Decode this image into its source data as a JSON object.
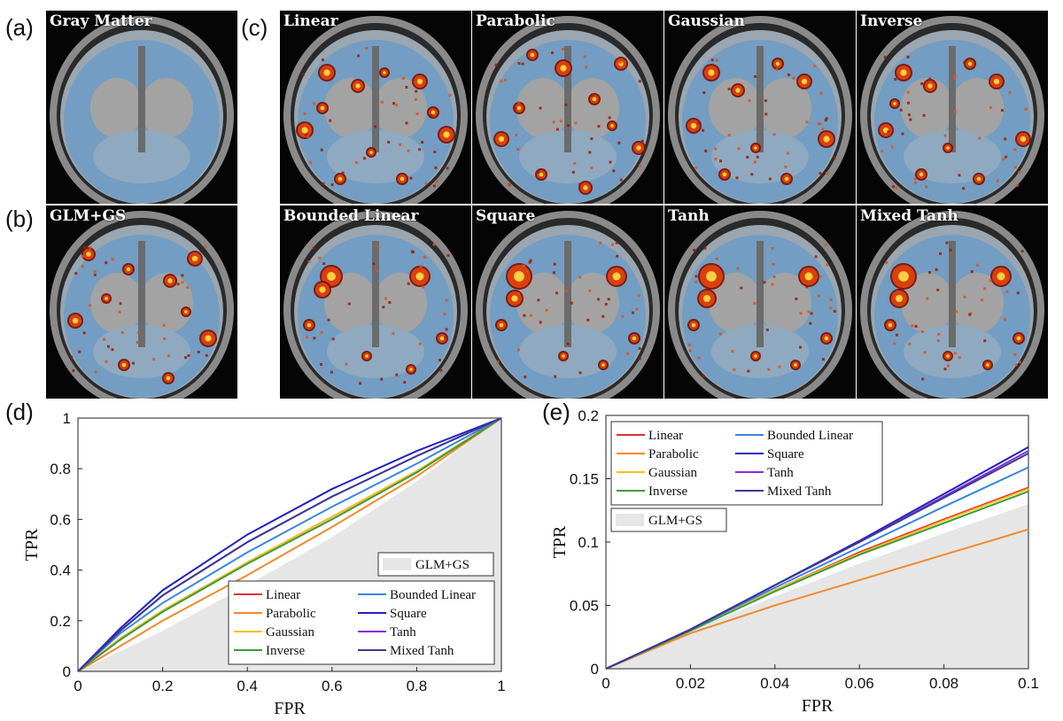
{
  "panels": {
    "a": {
      "label": "(a)",
      "title": "Gray Matter"
    },
    "b": {
      "label": "(b)",
      "title": "GLM+GS"
    },
    "c": {
      "label": "(c)",
      "titles": [
        "Linear",
        "Parabolic",
        "Gaussian",
        "Inverse",
        "Bounded Linear",
        "Square",
        "Tanh",
        "Mixed Tanh"
      ]
    },
    "d": {
      "label": "(d)"
    },
    "e": {
      "label": "(e)"
    }
  },
  "chart_data": [
    {
      "type": "line",
      "panel": "d",
      "xlabel": "FPR",
      "ylabel": "TPR",
      "xlim": [
        0,
        1
      ],
      "ylim": [
        0,
        1
      ],
      "xticks": [
        "0",
        "0.2",
        "0.4",
        "0.6",
        "0.8",
        "1"
      ],
      "yticks": [
        "0",
        "0.2",
        "0.4",
        "0.6",
        "0.8",
        "1"
      ],
      "legend_position": "bottom-right",
      "area": {
        "name": "GLM+GS",
        "color": "#e6e6e6",
        "x": [
          0,
          0.2,
          0.4,
          0.6,
          0.8,
          1
        ],
        "y": [
          0,
          0.16,
          0.34,
          0.53,
          0.75,
          1
        ]
      },
      "series": [
        {
          "name": "Linear",
          "color": "#e03030",
          "x": [
            0,
            0.1,
            0.2,
            0.4,
            0.6,
            0.8,
            1
          ],
          "y": [
            0,
            0.13,
            0.24,
            0.43,
            0.61,
            0.79,
            1
          ]
        },
        {
          "name": "Parabolic",
          "color": "#f08a2c",
          "x": [
            0,
            0.1,
            0.2,
            0.4,
            0.6,
            0.8,
            1
          ],
          "y": [
            0,
            0.1,
            0.2,
            0.38,
            0.57,
            0.77,
            1
          ]
        },
        {
          "name": "Gaussian",
          "color": "#f2c21a",
          "x": [
            0,
            0.1,
            0.2,
            0.4,
            0.6,
            0.8,
            1
          ],
          "y": [
            0,
            0.13,
            0.24,
            0.43,
            0.61,
            0.79,
            1
          ]
        },
        {
          "name": "Inverse",
          "color": "#3f9a3f",
          "x": [
            0,
            0.1,
            0.2,
            0.4,
            0.6,
            0.8,
            1
          ],
          "y": [
            0,
            0.125,
            0.235,
            0.425,
            0.6,
            0.785,
            1
          ]
        },
        {
          "name": "Bounded Linear",
          "color": "#3a86e0",
          "x": [
            0,
            0.1,
            0.2,
            0.4,
            0.6,
            0.8,
            1
          ],
          "y": [
            0,
            0.15,
            0.27,
            0.47,
            0.65,
            0.82,
            1
          ]
        },
        {
          "name": "Square",
          "color": "#2222c0",
          "x": [
            0,
            0.1,
            0.2,
            0.4,
            0.6,
            0.8,
            1
          ],
          "y": [
            0,
            0.17,
            0.32,
            0.54,
            0.72,
            0.87,
            1
          ]
        },
        {
          "name": "Tanh",
          "color": "#8a2be2",
          "x": [
            0,
            0.1,
            0.2,
            0.4,
            0.6,
            0.8,
            1
          ],
          "y": [
            0,
            0.16,
            0.3,
            0.51,
            0.69,
            0.85,
            1
          ]
        },
        {
          "name": "Mixed Tanh",
          "color": "#3a3a90",
          "x": [
            0,
            0.1,
            0.2,
            0.4,
            0.6,
            0.8,
            1
          ],
          "y": [
            0,
            0.16,
            0.3,
            0.51,
            0.69,
            0.85,
            1
          ]
        }
      ]
    },
    {
      "type": "line",
      "panel": "e",
      "xlabel": "FPR",
      "ylabel": "TPR",
      "xlim": [
        0,
        0.1
      ],
      "ylim": [
        0,
        0.2
      ],
      "xticks": [
        "0",
        "0.02",
        "0.04",
        "0.06",
        "0.08",
        "0.1"
      ],
      "yticks": [
        "0",
        "0.05",
        "0.1",
        "0.15",
        "0.2"
      ],
      "legend_position": "top-left",
      "area": {
        "name": "GLM+GS",
        "color": "#e6e6e6",
        "x": [
          0,
          0.02,
          0.04,
          0.06,
          0.08,
          0.1
        ],
        "y": [
          0,
          0.03,
          0.057,
          0.083,
          0.107,
          0.13
        ]
      },
      "series": [
        {
          "name": "Linear",
          "color": "#e03030",
          "x": [
            0,
            0.02,
            0.04,
            0.06,
            0.08,
            0.1
          ],
          "y": [
            0,
            0.03,
            0.062,
            0.092,
            0.118,
            0.143
          ]
        },
        {
          "name": "Parabolic",
          "color": "#f08a2c",
          "x": [
            0,
            0.02,
            0.04,
            0.06,
            0.08,
            0.1
          ],
          "y": [
            0,
            0.028,
            0.05,
            0.07,
            0.09,
            0.11
          ]
        },
        {
          "name": "Gaussian",
          "color": "#f2c21a",
          "x": [
            0,
            0.02,
            0.04,
            0.06,
            0.08,
            0.1
          ],
          "y": [
            0,
            0.03,
            0.062,
            0.091,
            0.117,
            0.142
          ]
        },
        {
          "name": "Inverse",
          "color": "#3f9a3f",
          "x": [
            0,
            0.02,
            0.04,
            0.06,
            0.08,
            0.1
          ],
          "y": [
            0,
            0.03,
            0.061,
            0.09,
            0.115,
            0.14
          ]
        },
        {
          "name": "Bounded Linear",
          "color": "#3a86e0",
          "x": [
            0,
            0.02,
            0.04,
            0.06,
            0.08,
            0.1
          ],
          "y": [
            0,
            0.031,
            0.064,
            0.096,
            0.128,
            0.159
          ]
        },
        {
          "name": "Square",
          "color": "#2222c0",
          "x": [
            0,
            0.02,
            0.04,
            0.06,
            0.08,
            0.1
          ],
          "y": [
            0,
            0.031,
            0.066,
            0.101,
            0.138,
            0.175
          ]
        },
        {
          "name": "Tanh",
          "color": "#8a2be2",
          "x": [
            0,
            0.02,
            0.04,
            0.06,
            0.08,
            0.1
          ],
          "y": [
            0,
            0.031,
            0.066,
            0.1,
            0.136,
            0.172
          ]
        },
        {
          "name": "Mixed Tanh",
          "color": "#3a3a90",
          "x": [
            0,
            0.02,
            0.04,
            0.06,
            0.08,
            0.1
          ],
          "y": [
            0,
            0.031,
            0.066,
            0.1,
            0.135,
            0.17
          ]
        }
      ]
    }
  ]
}
